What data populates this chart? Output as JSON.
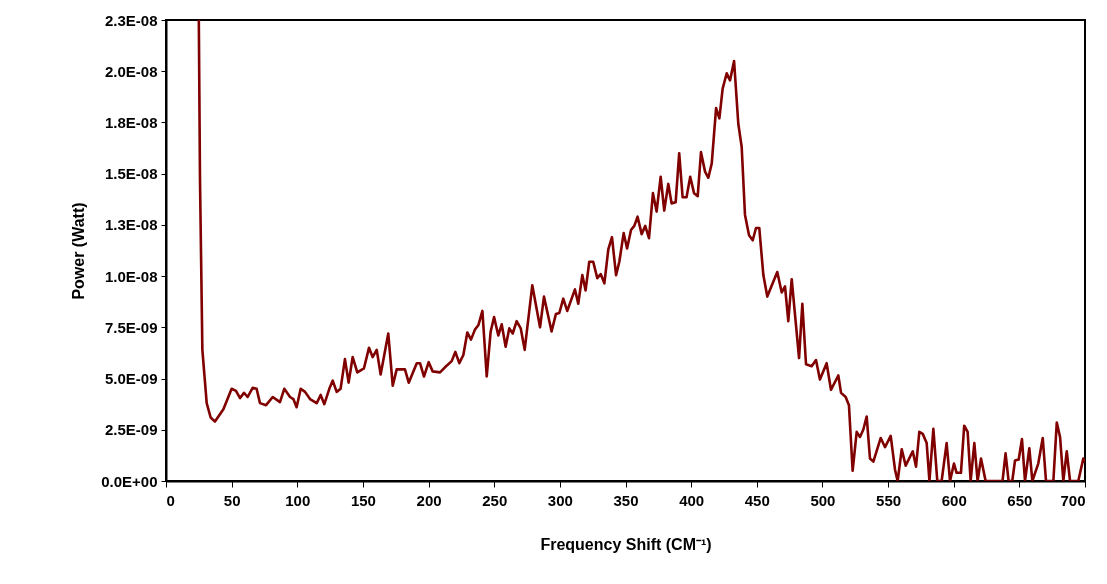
{
  "chart_data": {
    "type": "line",
    "xlabel": "Frequency Shift (CM⁻¹)",
    "ylabel": "Power (Watt)",
    "color": "#800000",
    "x": [
      25,
      25.9,
      27.7,
      31,
      34,
      37.3,
      43.7,
      50,
      53.3,
      56.4,
      59.4,
      62.2,
      66,
      69,
      71.6,
      76.2,
      81.3,
      86.8,
      90.1,
      94.5,
      97,
      99.5,
      102.6,
      105.9,
      109.7,
      114.8,
      117.8,
      120.6,
      124.4,
      127,
      130,
      133,
      136.3,
      139.1,
      142.2,
      145.7,
      150.8,
      154.6,
      157.4,
      160.5,
      163.5,
      169.3,
      172.7,
      175.7,
      182,
      184.9,
      191,
      193.5,
      196.5,
      200.1,
      203.1,
      208.7,
      212.5,
      217.6,
      220.4,
      223.4,
      226.5,
      229.5,
      232.3,
      235.4,
      237.9,
      241,
      244.3,
      247.3,
      249.9,
      253.1,
      255.7,
      258.7,
      261.5,
      264.1,
      267.1,
      270.2,
      273.2,
      279,
      284.9,
      287.9,
      293.7,
      297,
      299.6,
      302.6,
      305.6,
      311.5,
      314,
      317.1,
      319.6,
      322.4,
      325.4,
      328.5,
      331.1,
      333.9,
      336.9,
      339.7,
      342.8,
      345.3,
      348.6,
      351.2,
      354.2,
      356.7,
      359.2,
      362.3,
      365,
      367.9,
      370.9,
      373.7,
      376.8,
      379.5,
      382.6,
      385.1,
      388.2,
      390.9,
      393.5,
      396.5,
      399.3,
      402.2,
      405,
      407.5,
      410.6,
      413.1,
      415.7,
      419,
      421.5,
      424,
      427.1,
      429.6,
      432.7,
      435.9,
      438.5,
      441,
      444.1,
      446.9,
      449.4,
      451.9,
      455,
      458,
      465.6,
      469,
      471.5,
      474,
      476.6,
      482.2,
      484.7,
      487.5,
      491.8,
      495.1,
      498.1,
      503.2,
      506.5,
      512.1,
      514.2,
      517.7,
      520.2,
      523,
      526.1,
      528.6,
      531.1,
      533.7,
      536.2,
      538.8,
      544.4,
      547.7,
      552,
      555.3,
      557.3,
      560.4,
      563.4,
      568.8,
      571.3,
      573.8,
      576.4,
      579.4,
      581.5,
      584.5,
      587.5,
      590.8,
      594.6,
      597.2,
      600.2,
      602.2,
      605.5,
      608,
      610.6,
      612.9,
      615.7,
      618.2,
      620.8,
      624.3,
      637.2,
      639.5,
      641.8,
      644.6,
      646.7,
      649.5,
      652,
      654.3,
      657.6,
      659.9,
      664.4,
      667.8,
      670.3,
      675.9,
      678.5,
      681,
      683.5,
      686.1,
      688.6,
      694.9,
      698.7,
      700
    ],
    "values": [
      2.25e-08,
      1.47e-08,
      6.4e-09,
      3.8e-09,
      3.1e-09,
      2.9e-09,
      3.5e-09,
      4.5e-09,
      4.4e-09,
      4.05e-09,
      4.3e-09,
      4.1e-09,
      4.55e-09,
      4.5e-09,
      3.8e-09,
      3.7e-09,
      4.1e-09,
      3.85e-09,
      4.5e-09,
      4.1e-09,
      4e-09,
      3.6e-09,
      4.5e-09,
      4.35e-09,
      4e-09,
      3.8e-09,
      4.2e-09,
      3.75e-09,
      4.5e-09,
      4.9e-09,
      4.35e-09,
      4.5e-09,
      5.95e-09,
      4.8e-09,
      6.05e-09,
      5.3e-09,
      5.5e-09,
      6.5e-09,
      6.05e-09,
      6.4e-09,
      5.2e-09,
      7.2e-09,
      4.65e-09,
      5.45e-09,
      5.45e-09,
      4.8e-09,
      5.75e-09,
      5.75e-09,
      5.1e-09,
      5.8e-09,
      5.35e-09,
      5.3e-09,
      5.55e-09,
      5.85e-09,
      6.3e-09,
      5.75e-09,
      6.15e-09,
      7.25e-09,
      6.9e-09,
      7.4e-09,
      7.6e-09,
      8.3e-09,
      5.1e-09,
      7.3e-09,
      8e-09,
      7.1e-09,
      7.65e-09,
      6.55e-09,
      7.45e-09,
      7.2e-09,
      7.8e-09,
      7.45e-09,
      6.4e-09,
      9.55e-09,
      7.5e-09,
      9e-09,
      7.3e-09,
      8.15e-09,
      8.2e-09,
      8.9e-09,
      8.3e-09,
      9.35e-09,
      8.65e-09,
      1.005e-08,
      9.3e-09,
      1.07e-08,
      1.07e-08,
      9.9e-09,
      1.01e-08,
      9.65e-09,
      1.13e-08,
      1.19e-08,
      1.005e-08,
      1.07e-08,
      1.21e-08,
      1.135e-08,
      1.225e-08,
      1.245e-08,
      1.29e-08,
      1.205e-08,
      1.245e-08,
      1.185e-08,
      1.405e-08,
      1.315e-08,
      1.485e-08,
      1.32e-08,
      1.45e-08,
      1.355e-08,
      1.36e-08,
      1.6e-08,
      1.385e-08,
      1.385e-08,
      1.485e-08,
      1.405e-08,
      1.39e-08,
      1.605e-08,
      1.51e-08,
      1.48e-08,
      1.55e-08,
      1.82e-08,
      1.77e-08,
      1.915e-08,
      1.99e-08,
      1.955e-08,
      2.05e-08,
      1.745e-08,
      1.63e-08,
      1.3e-08,
      1.2e-08,
      1.175e-08,
      1.235e-08,
      1.235e-08,
      1.005e-08,
      9e-09,
      1.02e-08,
      9.2e-09,
      9.5e-09,
      7.8e-09,
      9.85e-09,
      6e-09,
      8.65e-09,
      5.7e-09,
      5.6e-09,
      5.9e-09,
      4.95e-09,
      5.75e-09,
      4.45e-09,
      5.15e-09,
      4.3e-09,
      4.1e-09,
      3.7e-09,
      5e-10,
      2.4e-09,
      2.15e-09,
      2.5e-09,
      3.15e-09,
      1.1e-09,
      9.5e-10,
      2.1e-09,
      1.65e-09,
      2.2e-09,
      5.5e-10,
      0,
      1.55e-09,
      7.5e-10,
      1.45e-09,
      7e-10,
      2.4e-09,
      2.3e-09,
      1.85e-09,
      0,
      2.55e-09,
      0,
      0,
      1.85e-09,
      0,
      8.5e-10,
      4e-10,
      4e-10,
      2.7e-09,
      2.4e-09,
      0,
      1.85e-09,
      0,
      1.1e-09,
      0,
      0,
      1.35e-09,
      0,
      0,
      1e-09,
      1.05e-09,
      2.05e-09,
      0,
      1.6e-09,
      0,
      8.5e-10,
      2.1e-09,
      0,
      0,
      2.85e-09,
      2.15e-09,
      0,
      1.45e-09,
      0,
      0,
      1.1e-09,
      9e-10
    ],
    "xlim": [
      0,
      700
    ],
    "xticks": [
      0,
      50,
      100,
      150,
      200,
      250,
      300,
      350,
      400,
      450,
      500,
      550,
      600,
      650,
      700
    ],
    "ylim": [
      0,
      2.25e-08
    ],
    "yticks": [
      {
        "value": 0,
        "label": "0.0E+00"
      },
      {
        "value": 2.5e-09,
        "label": "2.5E-09"
      },
      {
        "value": 5e-09,
        "label": "5.0E-09"
      },
      {
        "value": 7.5e-09,
        "label": "7.5E-09"
      },
      {
        "value": 1e-08,
        "label": "1.0E-08"
      },
      {
        "value": 1.25e-08,
        "label": "1.3E-08"
      },
      {
        "value": 1.5e-08,
        "label": "1.5E-08"
      },
      {
        "value": 1.75e-08,
        "label": "1.8E-08"
      },
      {
        "value": 2e-08,
        "label": "2.0E-08"
      },
      {
        "value": 2.25e-08,
        "label": "2.3E-08"
      }
    ]
  }
}
